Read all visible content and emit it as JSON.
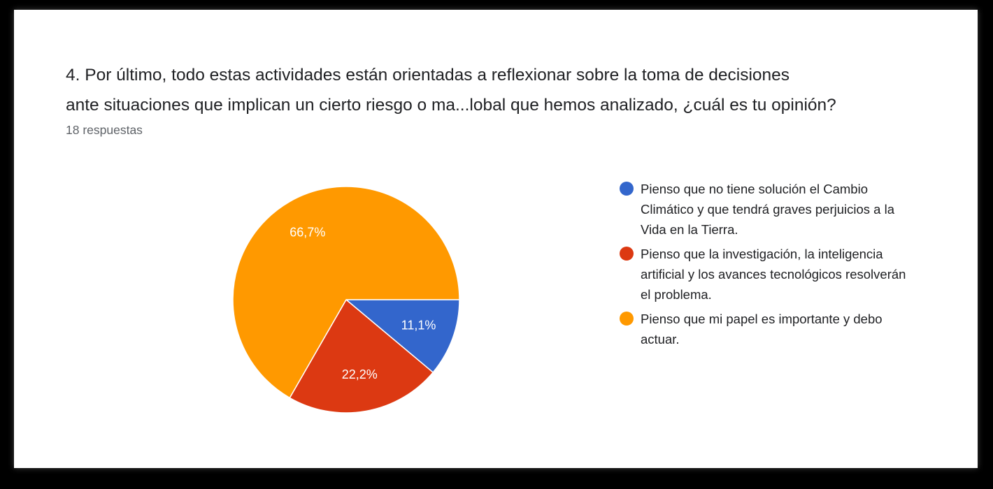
{
  "question": {
    "title": "4. Por último,  todo estas actividades están orientadas a reflexionar sobre la toma de decisiones\nante situaciones que implican un cierto riesgo o ma...lobal que hemos analizado, ¿cuál es tu opinión?",
    "responses": "18 respuestas"
  },
  "chart_data": {
    "type": "pie",
    "title": "4. Por último,  todo estas actividades están orientadas a reflexionar sobre la toma de decisiones ante situaciones que implican un cierto riesgo o ma...lobal que hemos analizado, ¿cuál es tu opinión?",
    "legend_position": "right",
    "start_angle_deg": 90,
    "direction": "clockwise",
    "slices": [
      {
        "label": "Pienso que no tiene solución el Cambio Climático y que tendrá graves perjuicios a la Vida en la Tierra.",
        "value": 11.1,
        "display": "11,1%",
        "color": "#3366cc"
      },
      {
        "label": "Pienso que la investigación, la inteligencia artificial y los avances tecnológicos resolverán el problema.",
        "value": 22.2,
        "display": "22,2%",
        "color": "#dc3912"
      },
      {
        "label": "Pienso que mi papel es importante y debo actuar.",
        "value": 66.7,
        "display": "66,7%",
        "color": "#ff9900"
      }
    ]
  }
}
